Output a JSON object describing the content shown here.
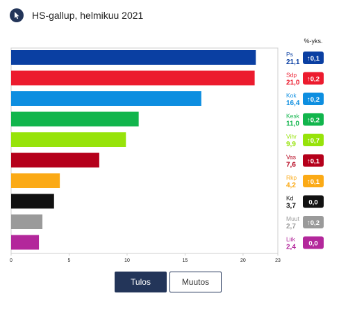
{
  "header": {
    "title": "HS-gallup, helmikuu 2021",
    "logo_icon": "hs-logo-icon"
  },
  "change_header": "%-yks.",
  "chart_data": {
    "type": "bar",
    "orientation": "horizontal",
    "title": "HS-gallup, helmikuu 2021",
    "categories": [
      "Ps",
      "Sdp",
      "Kok",
      "Kesk",
      "Vihr",
      "Vas",
      "Rkp",
      "Kd",
      "Muut",
      "Liik"
    ],
    "values": [
      21.1,
      21.0,
      16.4,
      11.0,
      9.9,
      7.6,
      4.2,
      3.7,
      2.7,
      2.4
    ],
    "value_labels": [
      "21,1",
      "21,0",
      "16,4",
      "11,0",
      "9,9",
      "7,6",
      "4,2",
      "3,7",
      "2,7",
      "2,4"
    ],
    "changes": [
      "0,1",
      "0,2",
      "0,2",
      "0,2",
      "0,7",
      "0,1",
      "0,1",
      "0,0",
      "0,2",
      "0,0"
    ],
    "change_arrows": [
      true,
      true,
      true,
      true,
      true,
      true,
      true,
      false,
      true,
      false
    ],
    "colors": [
      "#0a3fa2",
      "#ec1b2e",
      "#0d8ee0",
      "#11b54c",
      "#97e30a",
      "#b5001b",
      "#fbaa16",
      "#111111",
      "#9a9a9a",
      "#b3279b"
    ],
    "xlim": [
      0,
      23
    ],
    "x_ticks": [
      0,
      5,
      10,
      15,
      20,
      23
    ],
    "x_tick_labels": [
      "0",
      "5",
      "10",
      "15",
      "20",
      "23"
    ],
    "grid": false
  },
  "tabs": [
    {
      "label": "Tulos",
      "active": true
    },
    {
      "label": "Muutos",
      "active": false
    }
  ]
}
